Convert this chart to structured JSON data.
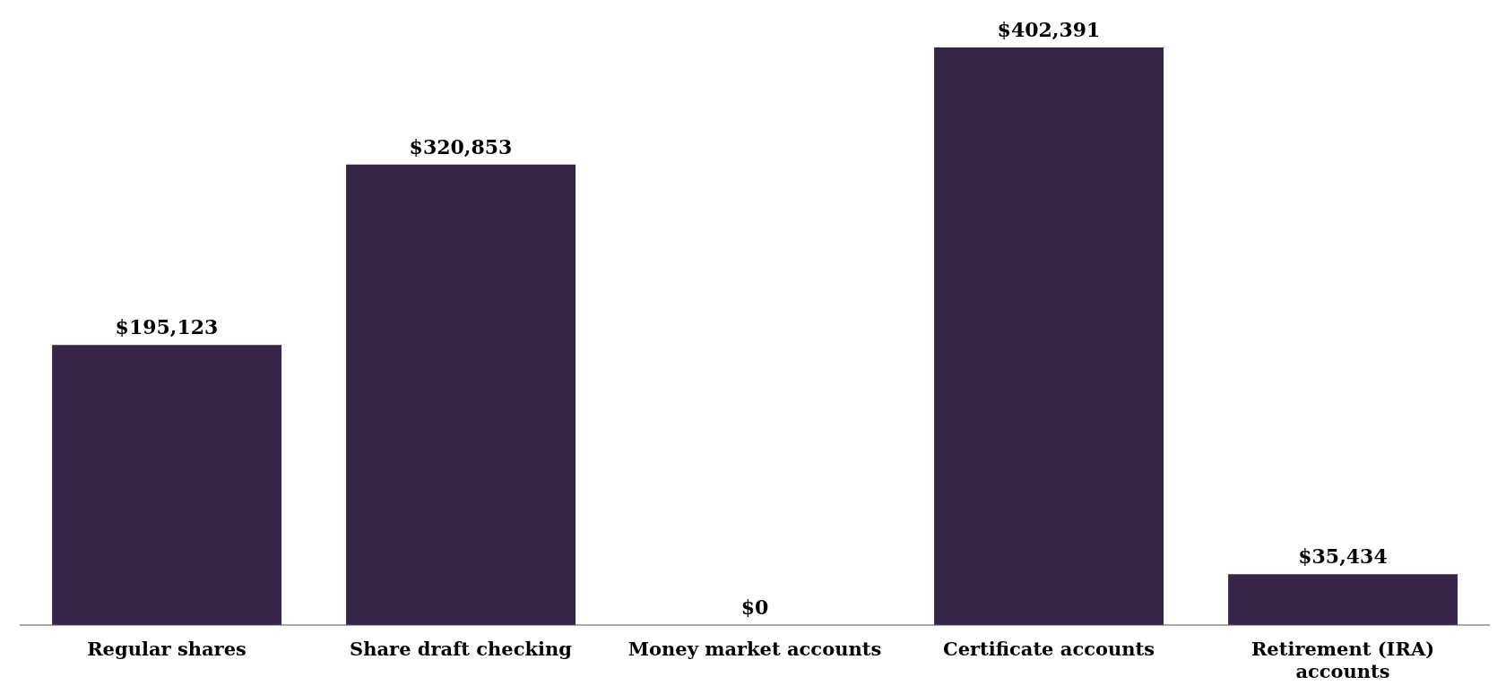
{
  "chart_data": {
    "type": "bar",
    "categories": [
      "Regular shares",
      "Share draft checking",
      "Money market accounts",
      "Certificate accounts",
      "Retirement (IRA) accounts"
    ],
    "values": [
      195123,
      320853,
      0,
      402391,
      35434
    ],
    "value_labels": [
      "$195,123",
      "$320,853",
      "$0",
      "$402,391",
      "$35,434"
    ],
    "color": "#352547",
    "grid": false,
    "legend": false
  }
}
